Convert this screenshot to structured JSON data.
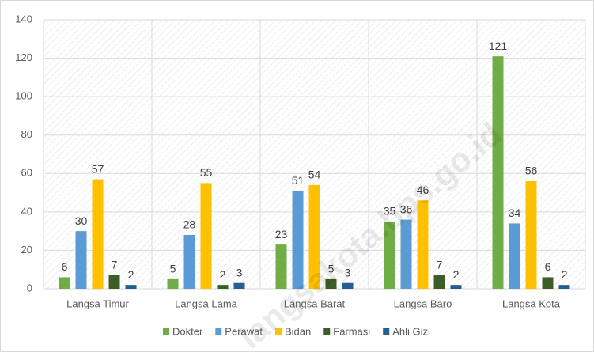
{
  "chart_data": {
    "type": "bar",
    "categories": [
      "Langsa Timur",
      "Langsa Lama",
      "Langsa Barat",
      "Langsa Baro",
      "Langsa Kota"
    ],
    "series": [
      {
        "name": "Dokter",
        "color": "#70ad47",
        "values": [
          6,
          5,
          23,
          35,
          121
        ]
      },
      {
        "name": "Perawat",
        "color": "#5b9bd5",
        "values": [
          30,
          28,
          51,
          36,
          34
        ]
      },
      {
        "name": "Bidan",
        "color": "#ffc000",
        "values": [
          57,
          55,
          54,
          46,
          56
        ]
      },
      {
        "name": "Farmasi",
        "color": "#3b5e26",
        "values": [
          7,
          2,
          5,
          7,
          6
        ]
      },
      {
        "name": "Ahli Gizi",
        "color": "#255e91",
        "values": [
          2,
          3,
          3,
          2,
          2
        ]
      }
    ],
    "ylim": [
      0,
      140
    ],
    "yticks": [
      0,
      20,
      40,
      60,
      80,
      100,
      120,
      140
    ],
    "grid": true,
    "legend": "bottom",
    "watermark": "langsakota.bps.go.id"
  }
}
